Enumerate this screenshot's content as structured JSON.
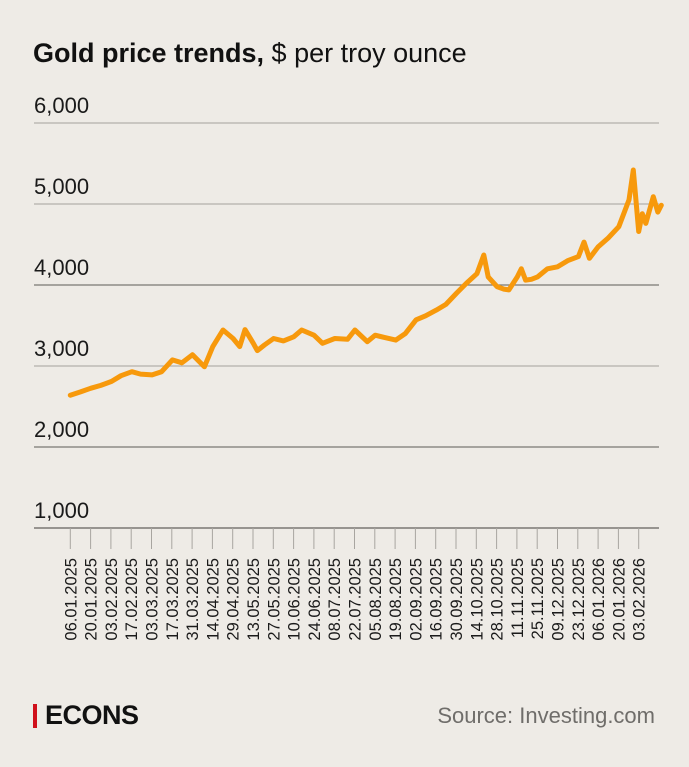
{
  "title": {
    "bold": "Gold price trends,",
    "regular": " $ per troy ounce"
  },
  "brand": "ECONS",
  "source": "Source: Investing.com",
  "colors": {
    "line": "#f7990c",
    "background": "#eeebe6",
    "brand_bar": "#d0101b"
  },
  "chart_data": {
    "type": "line",
    "title": "Gold price trends, $ per troy ounce",
    "xlabel": "",
    "ylabel": "$ per troy ounce",
    "ylim": [
      1000,
      6000
    ],
    "yticks": [
      1000,
      2000,
      3000,
      4000,
      5000,
      6000
    ],
    "ytick_labels": [
      "1,000",
      "2,000",
      "3,000",
      "4,000",
      "5,000",
      "6,000"
    ],
    "xtick_labels": [
      "06.01.2025",
      "20.01.2025",
      "03.02.2025",
      "17.02.2025",
      "03.03.2025",
      "17.03.2025",
      "31.03.2025",
      "14.04.2025",
      "29.04.2025",
      "13.05.2025",
      "27.05.2025",
      "10.06.2025",
      "24.06.2025",
      "08.07.2025",
      "22.07.2025",
      "05.08.2025",
      "19.08.2025",
      "02.09.2025",
      "16.09.2025",
      "30.09.2025",
      "14.10.2025",
      "28.10.2025",
      "11.11.2025",
      "25.11.2025",
      "09.12.2025",
      "23.12.2025",
      "06.01.2026",
      "20.01.2026",
      "03.02.2026"
    ],
    "x_unit": "days since 06.01.2025",
    "grid": true,
    "series": [
      {
        "name": "Gold price",
        "points": [
          [
            0,
            2640
          ],
          [
            7,
            2680
          ],
          [
            14,
            2725
          ],
          [
            21,
            2760
          ],
          [
            28.5,
            2810
          ],
          [
            35,
            2880
          ],
          [
            42.5,
            2930
          ],
          [
            48.5,
            2900
          ],
          [
            56.4,
            2890
          ],
          [
            63,
            2930
          ],
          [
            70.4,
            3075
          ],
          [
            77,
            3040
          ],
          [
            84.3,
            3140
          ],
          [
            92.5,
            2990
          ],
          [
            98.3,
            3240
          ],
          [
            105.3,
            3445
          ],
          [
            112.3,
            3340
          ],
          [
            116.8,
            3240
          ],
          [
            120.5,
            3450
          ],
          [
            126.2,
            3280
          ],
          [
            129,
            3190
          ],
          [
            134,
            3260
          ],
          [
            140.2,
            3340
          ],
          [
            147,
            3310
          ],
          [
            154.1,
            3360
          ],
          [
            159.6,
            3445
          ],
          [
            168.1,
            3380
          ],
          [
            173.9,
            3280
          ],
          [
            182.4,
            3340
          ],
          [
            191.2,
            3330
          ],
          [
            196.3,
            3445
          ],
          [
            204.8,
            3300
          ],
          [
            210.3,
            3380
          ],
          [
            217,
            3350
          ],
          [
            224.5,
            3320
          ],
          [
            231,
            3400
          ],
          [
            238.5,
            3570
          ],
          [
            245,
            3620
          ],
          [
            252.4,
            3690
          ],
          [
            259,
            3760
          ],
          [
            266.4,
            3900
          ],
          [
            273.1,
            4020
          ],
          [
            280.4,
            4140
          ],
          [
            285.2,
            4370
          ],
          [
            288.2,
            4100
          ],
          [
            294.3,
            3980
          ],
          [
            299,
            3950
          ],
          [
            302.5,
            3940
          ],
          [
            308.3,
            4100
          ],
          [
            311,
            4200
          ],
          [
            314,
            4060
          ],
          [
            318,
            4070
          ],
          [
            322.2,
            4100
          ],
          [
            329,
            4200
          ],
          [
            336.1,
            4225
          ],
          [
            343,
            4300
          ],
          [
            350.4,
            4350
          ],
          [
            354.3,
            4530
          ],
          [
            358,
            4330
          ],
          [
            364,
            4470
          ],
          [
            371,
            4580
          ],
          [
            378.3,
            4720
          ],
          [
            385.3,
            5050
          ],
          [
            388.3,
            5420
          ],
          [
            392,
            4660
          ],
          [
            394.5,
            4880
          ],
          [
            396.9,
            4760
          ],
          [
            402.1,
            5090
          ],
          [
            405.2,
            4900
          ],
          [
            407.6,
            4985
          ]
        ]
      }
    ]
  }
}
